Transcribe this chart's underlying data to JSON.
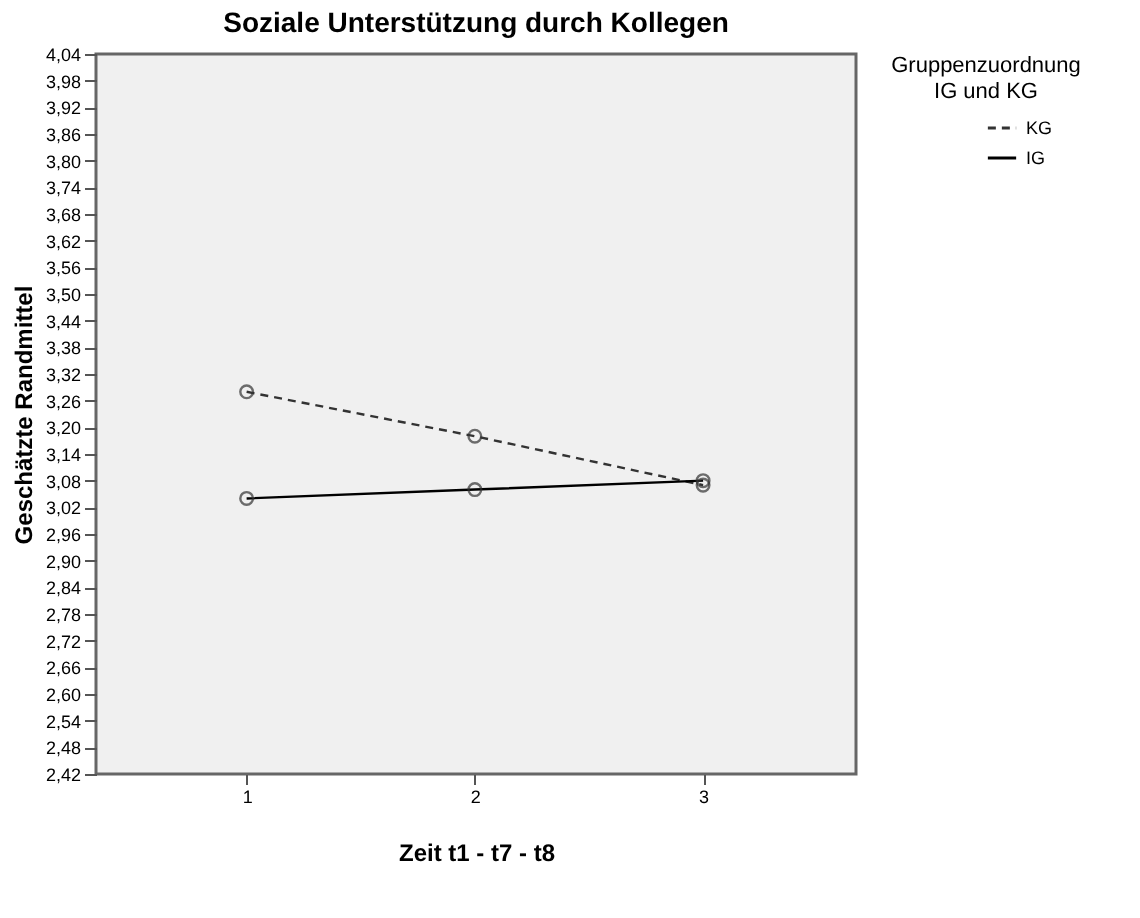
{
  "chart_data": {
    "type": "line",
    "title": "Soziale Unterstützung durch Kollegen",
    "xlabel": "Zeit t1 - t7 - t8",
    "ylabel": "Geschätzte Randmittel",
    "legend_title": "Gruppenzuordnung IG und KG",
    "x": [
      1,
      2,
      3
    ],
    "series": [
      {
        "name": "KG",
        "color": "#333333",
        "line_style": "dashed",
        "values": [
          3.28,
          3.18,
          3.07
        ]
      },
      {
        "name": "IG",
        "color": "#000000",
        "line_style": "solid",
        "values": [
          3.04,
          3.06,
          3.08
        ]
      }
    ],
    "marker": "circle",
    "legend": "top right",
    "grid": false,
    "xlim": [
      0.34,
      3.67
    ],
    "xticks": [
      1,
      2,
      3
    ],
    "ylim": [
      2.42,
      4.04
    ],
    "yticks": [
      {
        "value": 2.42,
        "label": "2,42"
      },
      {
        "value": 2.48,
        "label": "2,48"
      },
      {
        "value": 2.54,
        "label": "2,54"
      },
      {
        "value": 2.6,
        "label": "2,60"
      },
      {
        "value": 2.66,
        "label": "2,66"
      },
      {
        "value": 2.72,
        "label": "2,72"
      },
      {
        "value": 2.78,
        "label": "2,78"
      },
      {
        "value": 2.84,
        "label": "2,84"
      },
      {
        "value": 2.9,
        "label": "2,90"
      },
      {
        "value": 2.96,
        "label": "2,96"
      },
      {
        "value": 3.02,
        "label": "3,02"
      },
      {
        "value": 3.08,
        "label": "3,08"
      },
      {
        "value": 3.14,
        "label": "3,14"
      },
      {
        "value": 3.2,
        "label": "3,20"
      },
      {
        "value": 3.26,
        "label": "3,26"
      },
      {
        "value": 3.32,
        "label": "3,32"
      },
      {
        "value": 3.38,
        "label": "3,38"
      },
      {
        "value": 3.44,
        "label": "3,44"
      },
      {
        "value": 3.5,
        "label": "3,50"
      },
      {
        "value": 3.56,
        "label": "3,56"
      },
      {
        "value": 3.62,
        "label": "3,62"
      },
      {
        "value": 3.68,
        "label": "3,68"
      },
      {
        "value": 3.74,
        "label": "3,74"
      },
      {
        "value": 3.8,
        "label": "3,80"
      },
      {
        "value": 3.86,
        "label": "3,86"
      },
      {
        "value": 3.92,
        "label": "3,92"
      },
      {
        "value": 3.98,
        "label": "3,98"
      },
      {
        "value": 4.04,
        "label": "4,04"
      }
    ]
  }
}
